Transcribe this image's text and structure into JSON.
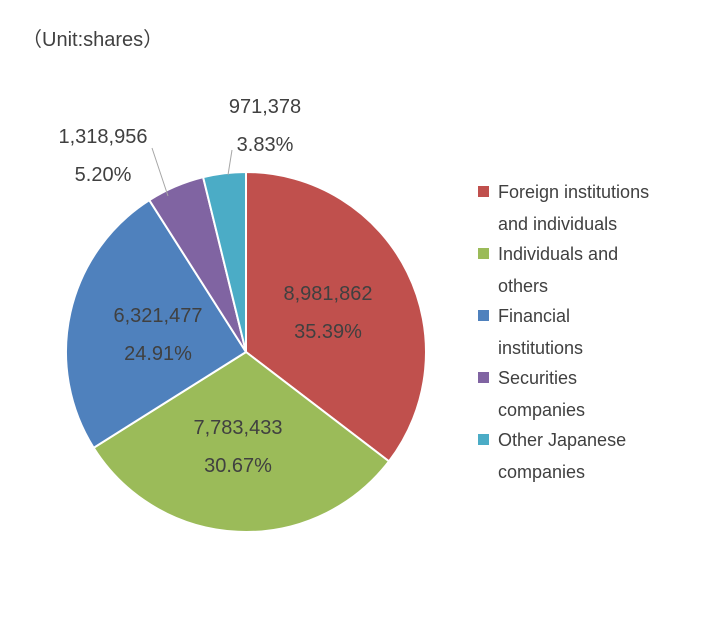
{
  "chart_data": {
    "type": "pie",
    "unit_label": "（Unit:shares）",
    "slices": [
      {
        "name": "Foreign institutions and individuals",
        "legend_lines": [
          "Foreign institutions",
          "and individuals"
        ],
        "value": 8981862,
        "value_label": "8,981,862",
        "percent_label": "35.39%",
        "color": "#C0504D"
      },
      {
        "name": "Individuals and others",
        "legend_lines": [
          "Individuals and",
          "others"
        ],
        "value": 7783433,
        "value_label": "7,783,433",
        "percent_label": "30.67%",
        "color": "#9BBB59"
      },
      {
        "name": "Financial institutions",
        "legend_lines": [
          "Financial",
          "institutions"
        ],
        "value": 6321477,
        "value_label": "6,321,477",
        "percent_label": "24.91%",
        "color": "#4F81BD"
      },
      {
        "name": "Securities companies",
        "legend_lines": [
          "Securities",
          "companies"
        ],
        "value": 1318956,
        "value_label": "1,318,956",
        "percent_label": "5.20%",
        "color": "#8064A2"
      },
      {
        "name": "Other Japanese companies",
        "legend_lines": [
          "Other Japanese",
          "companies"
        ],
        "value": 971378,
        "value_label": "971,378",
        "percent_label": "3.83%",
        "color": "#4BACC6"
      }
    ],
    "legend_placement": "right"
  }
}
